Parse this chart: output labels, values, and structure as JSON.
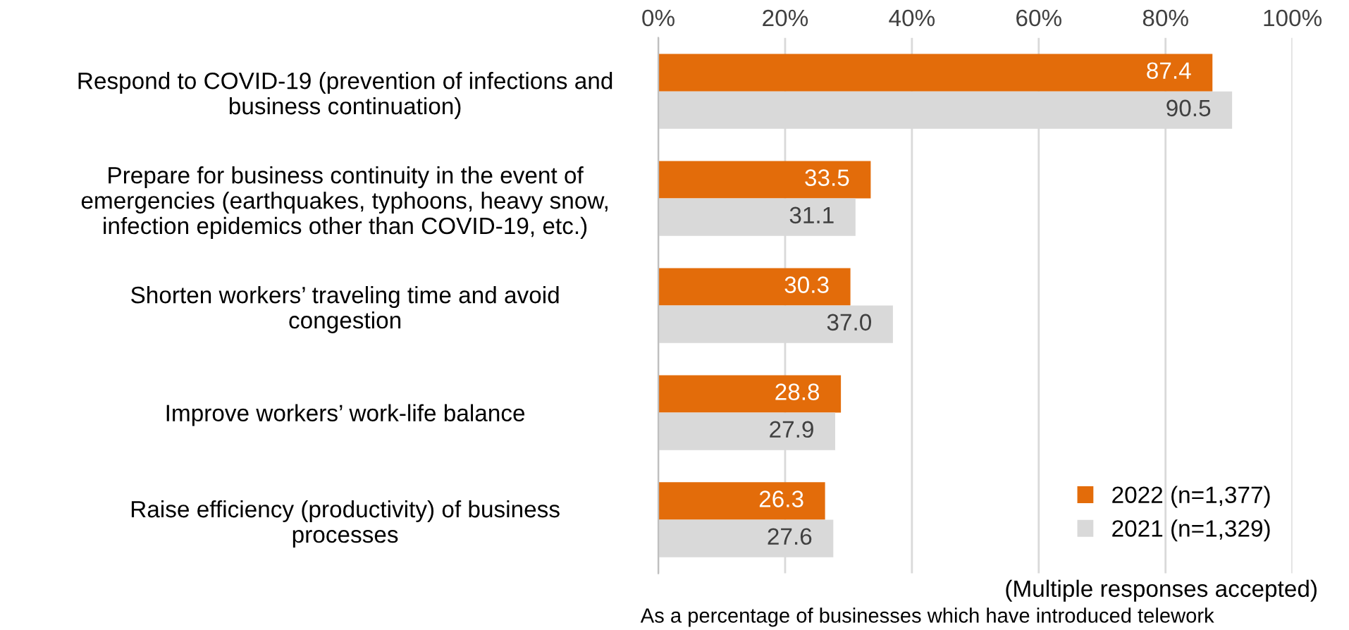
{
  "chart_data": {
    "type": "bar",
    "orientation": "horizontal",
    "categories": [
      "Respond to COVID-19 (prevention of infections and\nbusiness continuation)",
      "Prepare for business continuity in the event of\nemergencies (earthquakes, typhoons, heavy snow,\ninfection epidemics other than COVID-19, etc.)",
      "Shorten workers’ traveling time and avoid\ncongestion",
      "Improve workers’ work-life balance",
      "Raise efficiency (productivity) of business\nprocesses"
    ],
    "series": [
      {
        "name": "2022 (n=1,377)",
        "color": "#e36c0a",
        "values": [
          87.4,
          33.5,
          30.3,
          28.8,
          26.3
        ],
        "value_labels": [
          "87.4",
          "33.5",
          "30.3",
          "28.8",
          "26.3"
        ]
      },
      {
        "name": "2021 (n=1,329)",
        "color": "#d9d9d9",
        "values": [
          90.5,
          31.1,
          37.0,
          27.9,
          27.6
        ],
        "value_labels": [
          "90.5",
          "31.1",
          "37.0",
          "27.9",
          "27.6"
        ]
      }
    ],
    "xlim": [
      0,
      100
    ],
    "xticks": [
      {
        "value": 0,
        "label": "0%"
      },
      {
        "value": 20,
        "label": "20%"
      },
      {
        "value": 40,
        "label": "40%"
      },
      {
        "value": 60,
        "label": "60%"
      },
      {
        "value": 80,
        "label": "80%"
      },
      {
        "value": 100,
        "label": "100%"
      }
    ],
    "grid": "x",
    "legend": "bottom right",
    "annotations": [
      "(Multiple responses accepted)",
      "As a percentage of businesses which have introduced telework"
    ]
  }
}
